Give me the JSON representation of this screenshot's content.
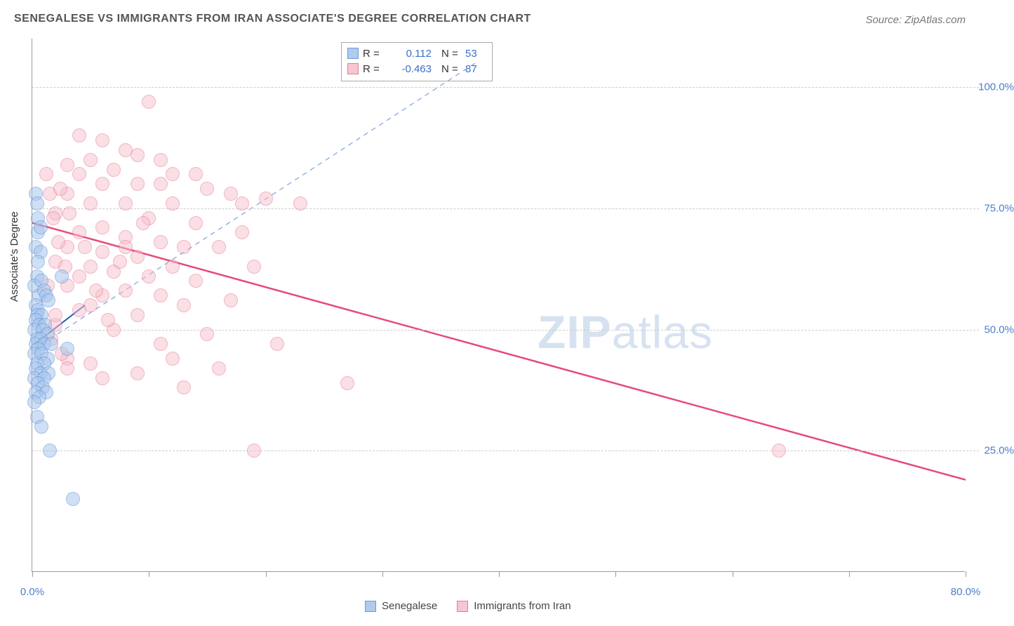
{
  "title": "SENEGALESE VS IMMIGRANTS FROM IRAN ASSOCIATE'S DEGREE CORRELATION CHART",
  "source": "Source: ZipAtlas.com",
  "y_axis_label": "Associate's Degree",
  "watermark_zip": "ZIP",
  "watermark_atlas": "atlas",
  "chart": {
    "type": "scatter",
    "xlim": [
      0,
      80
    ],
    "ylim": [
      0,
      110
    ],
    "x_ticks": [
      0,
      10,
      20,
      30,
      40,
      50,
      60,
      70,
      80
    ],
    "x_tick_labels": {
      "0": "0.0%",
      "80": "80.0%"
    },
    "y_grid": [
      25,
      50,
      75,
      100
    ],
    "y_tick_labels": {
      "25": "25.0%",
      "50": "50.0%",
      "75": "75.0%",
      "100": "100.0%"
    },
    "background_color": "#ffffff",
    "grid_color": "#cccccc"
  },
  "series": {
    "blue": {
      "label": "Senegalese",
      "fill": "#a8c6ec",
      "stroke": "#5b8fd6",
      "fill_opacity": 0.55,
      "R": "0.112",
      "N": "53",
      "trend_solid": {
        "x1": 0.2,
        "y1": 47,
        "x2": 4.5,
        "y2": 55,
        "color": "#1d5bbf",
        "width": 2
      },
      "trend_dash": {
        "x1": 0.2,
        "y1": 46,
        "x2": 38,
        "y2": 105,
        "color": "#7ba3db",
        "width": 1.2,
        "dash": "7 6"
      },
      "points": [
        [
          0.3,
          78
        ],
        [
          0.4,
          76
        ],
        [
          0.5,
          73
        ],
        [
          0.5,
          70
        ],
        [
          0.3,
          67
        ],
        [
          0.7,
          66
        ],
        [
          0.7,
          71
        ],
        [
          0.5,
          64
        ],
        [
          0.4,
          61
        ],
        [
          0.2,
          59
        ],
        [
          0.6,
          57
        ],
        [
          0.8,
          60
        ],
        [
          1.0,
          58
        ],
        [
          1.2,
          57
        ],
        [
          1.4,
          56
        ],
        [
          0.3,
          55
        ],
        [
          0.5,
          54
        ],
        [
          0.4,
          53
        ],
        [
          0.8,
          53
        ],
        [
          0.3,
          52
        ],
        [
          0.6,
          51
        ],
        [
          1.1,
          51
        ],
        [
          0.2,
          50
        ],
        [
          0.9,
          50
        ],
        [
          1.3,
          49
        ],
        [
          0.4,
          48
        ],
        [
          0.7,
          48
        ],
        [
          0.3,
          47
        ],
        [
          1.0,
          47
        ],
        [
          1.6,
          47
        ],
        [
          0.5,
          46
        ],
        [
          0.2,
          45
        ],
        [
          0.8,
          45
        ],
        [
          1.3,
          44
        ],
        [
          0.4,
          43
        ],
        [
          1.0,
          43
        ],
        [
          0.3,
          42
        ],
        [
          0.7,
          41
        ],
        [
          1.4,
          41
        ],
        [
          0.2,
          40
        ],
        [
          1.0,
          40
        ],
        [
          0.5,
          39
        ],
        [
          0.9,
          38
        ],
        [
          0.3,
          37
        ],
        [
          1.2,
          37
        ],
        [
          0.6,
          36
        ],
        [
          0.2,
          35
        ],
        [
          0.4,
          32
        ],
        [
          0.8,
          30
        ],
        [
          1.5,
          25
        ],
        [
          3.0,
          46
        ],
        [
          2.5,
          61
        ],
        [
          3.5,
          15
        ]
      ]
    },
    "pink": {
      "label": "Immigrants from Iran",
      "fill": "#f6c0cd",
      "stroke": "#e86b8c",
      "fill_opacity": 0.5,
      "R": "-0.463",
      "N": "87",
      "trend_solid": {
        "x1": 0,
        "y1": 72,
        "x2": 80,
        "y2": 19,
        "color": "#e74a7a",
        "width": 2.5
      },
      "points": [
        [
          10,
          97
        ],
        [
          4,
          90
        ],
        [
          6,
          89
        ],
        [
          8,
          87
        ],
        [
          9,
          86
        ],
        [
          11,
          85
        ],
        [
          5,
          85
        ],
        [
          3,
          84
        ],
        [
          7,
          83
        ],
        [
          12,
          82
        ],
        [
          4,
          82
        ],
        [
          14,
          82
        ],
        [
          6,
          80
        ],
        [
          9,
          80
        ],
        [
          11,
          80
        ],
        [
          15,
          79
        ],
        [
          3,
          78
        ],
        [
          17,
          78
        ],
        [
          20,
          77
        ],
        [
          5,
          76
        ],
        [
          8,
          76
        ],
        [
          12,
          76
        ],
        [
          2,
          74
        ],
        [
          10,
          73
        ],
        [
          14,
          72
        ],
        [
          6,
          71
        ],
        [
          4,
          70
        ],
        [
          18,
          70
        ],
        [
          8,
          69
        ],
        [
          11,
          68
        ],
        [
          3,
          67
        ],
        [
          13,
          67
        ],
        [
          16,
          67
        ],
        [
          6,
          66
        ],
        [
          9,
          65
        ],
        [
          2,
          64
        ],
        [
          5,
          63
        ],
        [
          12,
          63
        ],
        [
          19,
          63
        ],
        [
          7,
          62
        ],
        [
          4,
          61
        ],
        [
          10,
          61
        ],
        [
          14,
          60
        ],
        [
          3,
          59
        ],
        [
          8,
          58
        ],
        [
          6,
          57
        ],
        [
          11,
          57
        ],
        [
          17,
          56
        ],
        [
          5,
          55
        ],
        [
          13,
          55
        ],
        [
          4,
          54
        ],
        [
          9,
          53
        ],
        [
          2,
          51
        ],
        [
          7,
          50
        ],
        [
          15,
          49
        ],
        [
          11,
          47
        ],
        [
          21,
          47
        ],
        [
          8,
          67
        ],
        [
          18,
          76
        ],
        [
          3,
          44
        ],
        [
          12,
          44
        ],
        [
          5,
          43
        ],
        [
          16,
          42
        ],
        [
          9,
          41
        ],
        [
          6,
          40
        ],
        [
          13,
          38
        ],
        [
          27,
          39
        ],
        [
          23,
          76
        ],
        [
          19,
          25
        ],
        [
          64,
          25
        ],
        [
          1.5,
          78
        ],
        [
          1.8,
          73
        ],
        [
          2.2,
          68
        ],
        [
          2.8,
          63
        ],
        [
          1.3,
          59
        ],
        [
          2.0,
          53
        ],
        [
          1.6,
          48
        ],
        [
          2.5,
          45
        ],
        [
          3.0,
          42
        ],
        [
          1.2,
          82
        ],
        [
          2.4,
          79
        ],
        [
          3.2,
          74
        ],
        [
          4.5,
          67
        ],
        [
          5.5,
          58
        ],
        [
          6.5,
          52
        ],
        [
          7.5,
          64
        ],
        [
          9.5,
          72
        ]
      ]
    }
  },
  "legend_bottom": [
    "Senegalese",
    "Immigrants from Iran"
  ]
}
